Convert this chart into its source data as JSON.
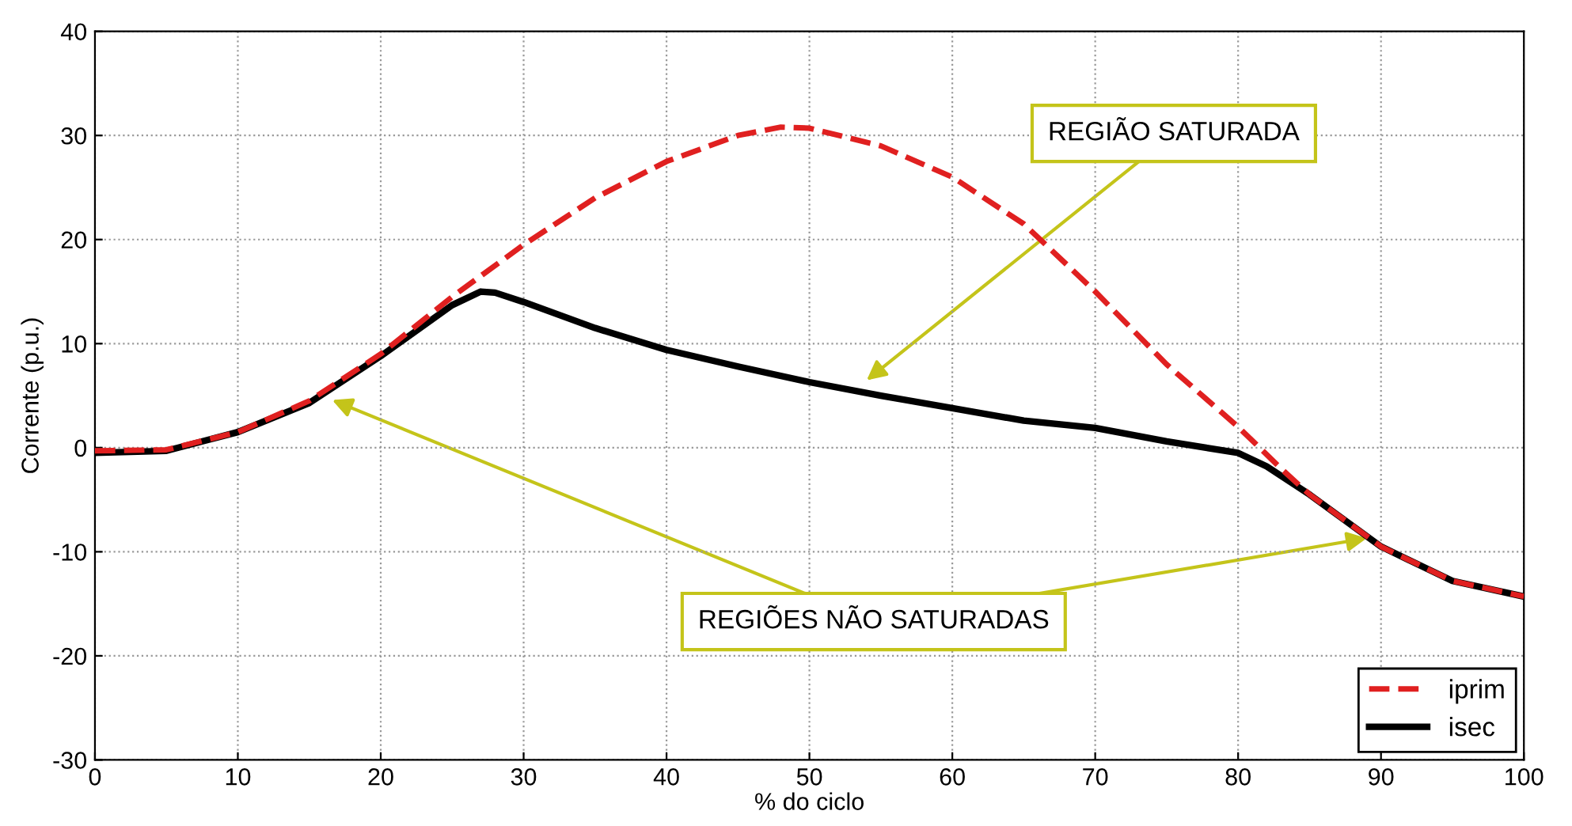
{
  "chart_data": {
    "type": "line",
    "xlabel": "% do ciclo",
    "ylabel": "Corrente (p.u.)",
    "xlim": [
      0,
      100
    ],
    "xticks": [
      0,
      10,
      20,
      30,
      40,
      50,
      60,
      70,
      80,
      90,
      100
    ],
    "ylim": [
      -30,
      40
    ],
    "yticks": [
      -30,
      -20,
      -10,
      0,
      10,
      20,
      30,
      40
    ],
    "grid": true,
    "legend": "bottom right",
    "series": [
      {
        "name": "iprim",
        "color": "#e02020",
        "line_style": "dashed",
        "x": [
          0,
          5,
          10,
          15,
          20,
          25,
          30,
          35,
          40,
          45,
          48,
          50,
          55,
          60,
          65,
          70,
          75,
          80,
          83,
          85,
          90,
          95,
          100
        ],
        "values": [
          -0.3,
          -0.2,
          1.5,
          4.5,
          9,
          14.5,
          19.5,
          24,
          27.5,
          30,
          30.8,
          30.7,
          29,
          26,
          21.5,
          15,
          8,
          2,
          -2,
          -4.5,
          -9.5,
          -12.8,
          -14.3
        ]
      },
      {
        "name": "isec",
        "color": "#000000",
        "line_style": "solid",
        "x": [
          0,
          5,
          10,
          15,
          20,
          25,
          27,
          28,
          30,
          35,
          40,
          45,
          50,
          55,
          60,
          65,
          70,
          75,
          80,
          82,
          85,
          90,
          95,
          100
        ],
        "values": [
          -0.5,
          -0.3,
          1.5,
          4.3,
          8.8,
          13.7,
          15,
          14.9,
          14,
          11.5,
          9.4,
          7.8,
          6.3,
          5,
          3.8,
          2.6,
          1.9,
          0.6,
          -0.5,
          -1.8,
          -4.5,
          -9.5,
          -12.8,
          -14.3
        ]
      }
    ],
    "annotations": [
      "REGIÃO SATURADA",
      {
        "text": "REGIÕES NÃO SATURADAS",
        "x": 89,
        "y": -8.7
      }
    ]
  }
}
